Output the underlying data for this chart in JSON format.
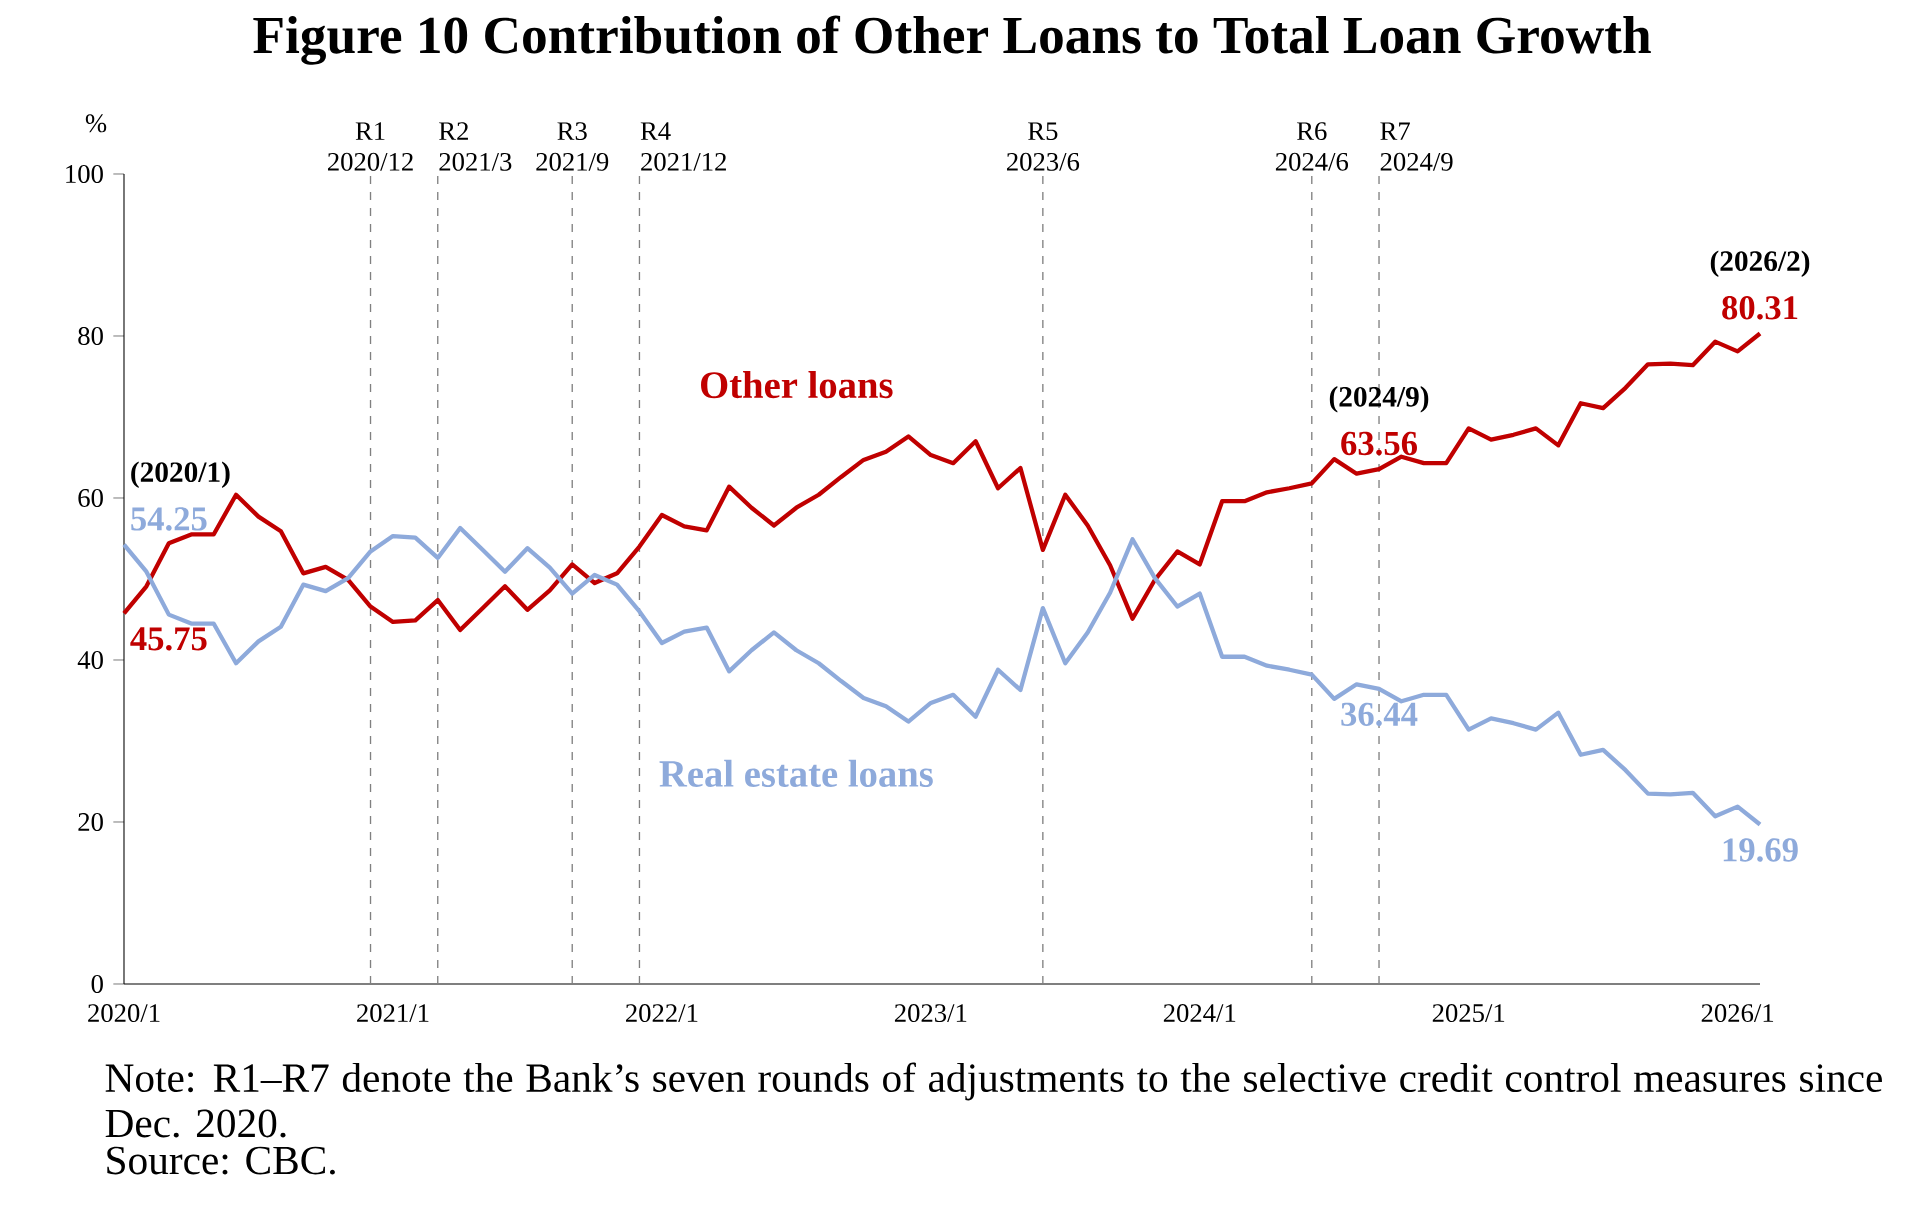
{
  "chart_data": {
    "type": "line",
    "title": "Figure 10    Contribution of Other Loans to Total Loan Growth",
    "ylabel": "%",
    "x": [
      "2020-01",
      "2020-02",
      "2020-03",
      "2020-04",
      "2020-05",
      "2020-06",
      "2020-07",
      "2020-08",
      "2020-09",
      "2020-10",
      "2020-11",
      "2020-12",
      "2021-01",
      "2021-02",
      "2021-03",
      "2021-04",
      "2021-05",
      "2021-06",
      "2021-07",
      "2021-08",
      "2021-09",
      "2021-10",
      "2021-11",
      "2021-12",
      "2022-01",
      "2022-02",
      "2022-03",
      "2022-04",
      "2022-05",
      "2022-06",
      "2022-07",
      "2022-08",
      "2022-09",
      "2022-10",
      "2022-11",
      "2022-12",
      "2023-01",
      "2023-02",
      "2023-03",
      "2023-04",
      "2023-05",
      "2023-06",
      "2023-07",
      "2023-08",
      "2023-09",
      "2023-10",
      "2023-11",
      "2023-12",
      "2024-01",
      "2024-02",
      "2024-03",
      "2024-04",
      "2024-05",
      "2024-06",
      "2024-07",
      "2024-08",
      "2024-09",
      "2024-10",
      "2024-11",
      "2024-12",
      "2025-01",
      "2025-02",
      "2025-03",
      "2025-04",
      "2025-05",
      "2025-06",
      "2025-07",
      "2025-08",
      "2025-09",
      "2025-10",
      "2025-11",
      "2025-12",
      "2026-01",
      "2026-02"
    ],
    "series": [
      {
        "name": "Other loans",
        "color": "#c00000",
        "values": [
          45.75,
          49.1,
          54.4,
          55.5,
          55.5,
          60.4,
          57.7,
          55.9,
          50.7,
          51.5,
          49.9,
          46.6,
          44.7,
          44.9,
          47.4,
          43.7,
          46.4,
          49.1,
          46.2,
          48.6,
          51.8,
          49.5,
          50.7,
          54.0,
          57.9,
          56.5,
          56.0,
          61.4,
          58.8,
          56.6,
          58.8,
          60.4,
          62.6,
          64.7,
          65.7,
          67.6,
          65.3,
          64.3,
          67.0,
          61.2,
          63.7,
          53.6,
          60.4,
          56.6,
          51.7,
          45.1,
          49.9,
          53.4,
          51.8,
          59.6,
          59.6,
          60.7,
          61.2,
          61.8,
          64.8,
          63.0,
          63.56,
          65.1,
          64.3,
          64.3,
          68.6,
          67.2,
          67.8,
          68.6,
          66.5,
          71.7,
          71.1,
          73.6,
          76.5,
          76.6,
          76.4,
          79.3,
          78.1,
          80.31
        ],
        "value_labels": [
          "45.75",
          null,
          null,
          null,
          null,
          null,
          null,
          null,
          null,
          null,
          null,
          null,
          null,
          null,
          null,
          null,
          null,
          null,
          null,
          null,
          null,
          null,
          null,
          null,
          null,
          null,
          null,
          null,
          null,
          null,
          null,
          null,
          null,
          null,
          null,
          null,
          null,
          null,
          null,
          null,
          null,
          null,
          null,
          null,
          null,
          null,
          null,
          null,
          null,
          null,
          null,
          null,
          null,
          null,
          null,
          null,
          "63.56",
          null,
          null,
          null,
          null,
          null,
          null,
          null,
          null,
          null,
          null,
          null,
          null,
          null,
          null,
          null,
          null,
          "80.31"
        ]
      },
      {
        "name": "Real estate loans",
        "color": "#8eaadb",
        "values": [
          54.25,
          50.9,
          45.6,
          44.5,
          44.5,
          39.6,
          42.3,
          44.1,
          49.3,
          48.5,
          50.1,
          53.4,
          55.3,
          55.1,
          52.6,
          56.3,
          53.6,
          50.9,
          53.8,
          51.4,
          48.2,
          50.5,
          49.3,
          46.0,
          42.1,
          43.5,
          44.0,
          38.6,
          41.2,
          43.4,
          41.2,
          39.6,
          37.4,
          35.3,
          34.3,
          32.4,
          34.7,
          35.7,
          33.0,
          38.8,
          36.3,
          46.4,
          39.6,
          43.4,
          48.3,
          54.9,
          50.1,
          46.6,
          48.2,
          40.4,
          40.4,
          39.3,
          38.8,
          38.2,
          35.2,
          37.0,
          36.44,
          34.9,
          35.7,
          35.7,
          31.4,
          32.8,
          32.2,
          31.4,
          33.5,
          28.3,
          28.9,
          26.4,
          23.5,
          23.4,
          23.6,
          20.7,
          21.9,
          19.69
        ],
        "value_labels": [
          "54.25",
          null,
          null,
          null,
          null,
          null,
          null,
          null,
          null,
          null,
          null,
          null,
          null,
          null,
          null,
          null,
          null,
          null,
          null,
          null,
          null,
          null,
          null,
          null,
          null,
          null,
          null,
          null,
          null,
          null,
          null,
          null,
          null,
          null,
          null,
          null,
          null,
          null,
          null,
          null,
          null,
          null,
          null,
          null,
          null,
          null,
          null,
          null,
          null,
          null,
          null,
          null,
          null,
          null,
          null,
          null,
          "36.44",
          null,
          null,
          null,
          null,
          null,
          null,
          null,
          null,
          null,
          null,
          null,
          null,
          null,
          null,
          null,
          null,
          "19.69"
        ]
      }
    ],
    "xlim": [
      "2020-01",
      "2026-02"
    ],
    "xticks": [
      {
        "value": "2020-01",
        "label": "2020/1"
      },
      {
        "value": "2021-01",
        "label": "2021/1"
      },
      {
        "value": "2022-01",
        "label": "2022/1"
      },
      {
        "value": "2023-01",
        "label": "2023/1"
      },
      {
        "value": "2024-01",
        "label": "2024/1"
      },
      {
        "value": "2025-01",
        "label": "2025/1"
      },
      {
        "value": "2026-01",
        "label": "2026/1"
      }
    ],
    "ylim": [
      0,
      100
    ],
    "yticks": [
      0,
      20,
      40,
      60,
      80,
      100
    ],
    "grid": false,
    "ref_lines": [
      {
        "axis": "x",
        "value": "2020-12",
        "label": "R1 2020/12",
        "color": "#808080",
        "line_style": "dashed"
      },
      {
        "axis": "x",
        "value": "2021-03",
        "label": "R2 2021/3",
        "color": "#808080",
        "line_style": "dashed"
      },
      {
        "axis": "x",
        "value": "2021-09",
        "label": "R3 2021/9",
        "color": "#808080",
        "line_style": "dashed"
      },
      {
        "axis": "x",
        "value": "2021-12",
        "label": "R4 2021/12",
        "color": "#808080",
        "line_style": "dashed"
      },
      {
        "axis": "x",
        "value": "2023-06",
        "label": "R5 2023/6",
        "color": "#808080",
        "line_style": "dashed"
      },
      {
        "axis": "x",
        "value": "2024-06",
        "label": "R6 2024/6",
        "color": "#808080",
        "line_style": "dashed"
      },
      {
        "axis": "x",
        "value": "2024-09",
        "label": "R7 2024/9",
        "color": "#808080",
        "line_style": "dashed"
      }
    ],
    "annotations": [
      {
        "text": "(2020/1)",
        "x": "2020-01",
        "y": 54.25
      },
      {
        "text": "(2024/9)",
        "x": "2024-09",
        "y": 63.56
      },
      {
        "text": "(2026/2)",
        "x": "2026-02",
        "y": 80.31
      },
      "Note: R1–R7 denote the Bank’s seven rounds of adjustments to the selective credit control measures since Dec. 2020.",
      "Source: CBC."
    ]
  }
}
